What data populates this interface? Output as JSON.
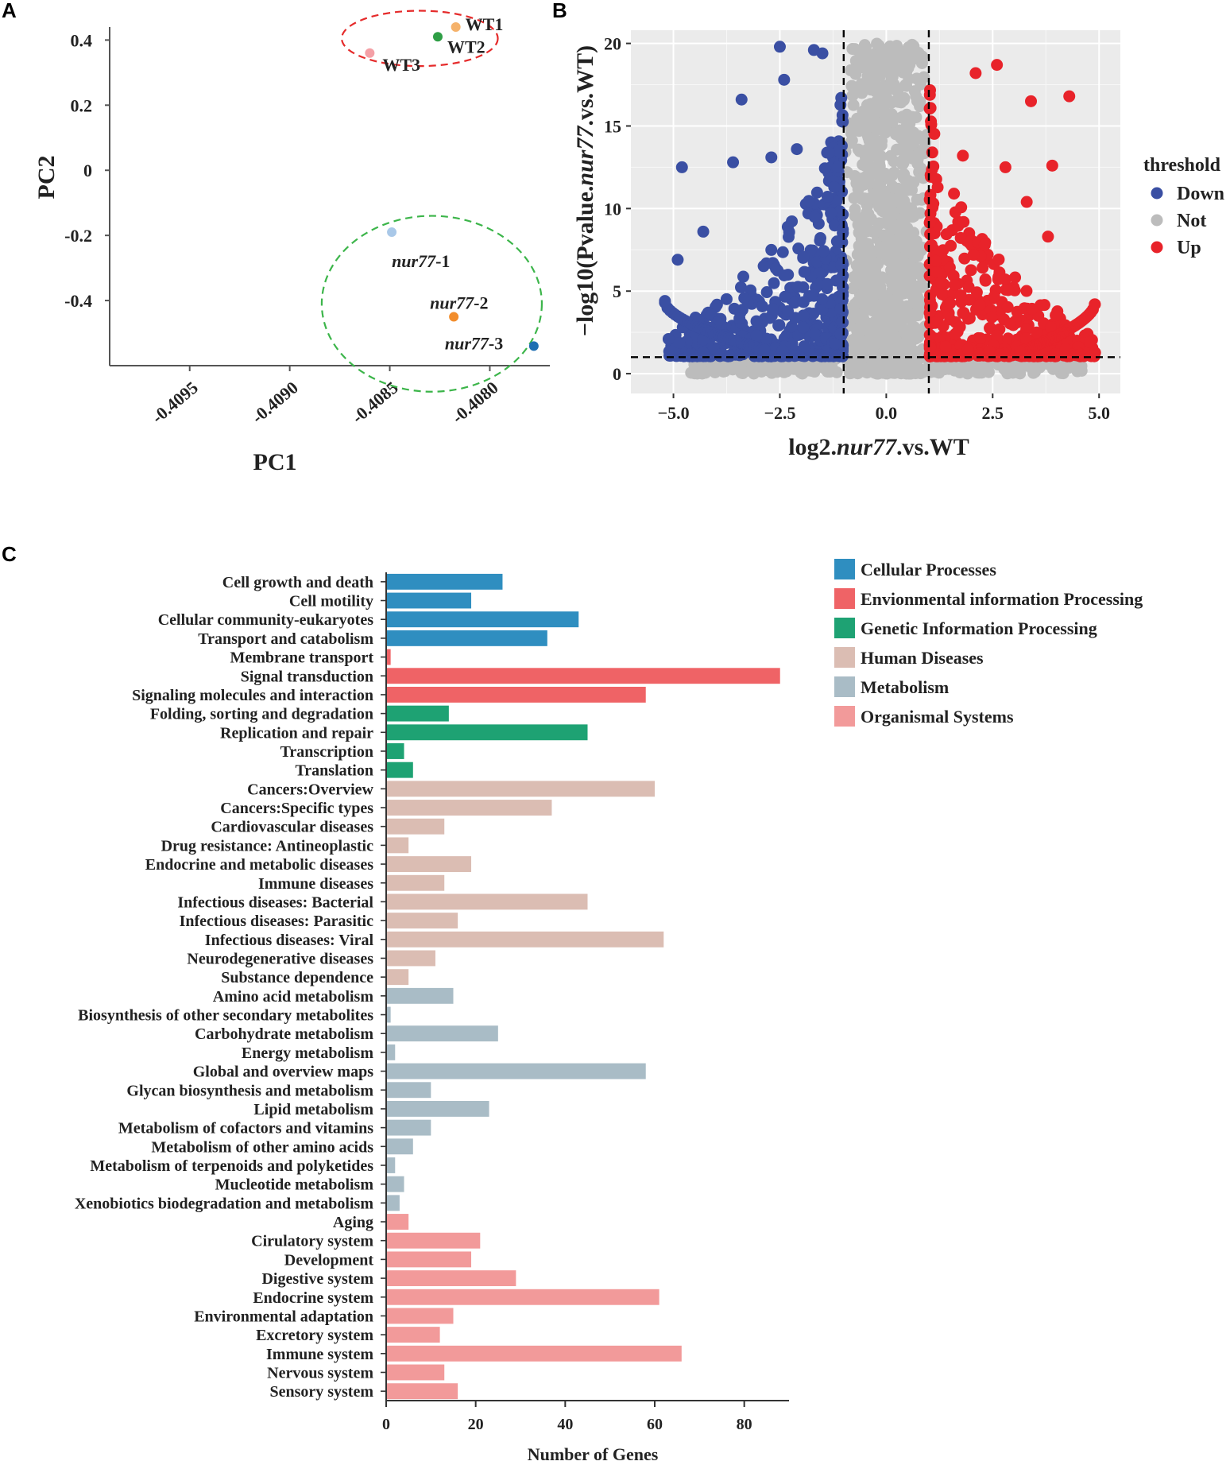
{
  "panels": {
    "a": "A",
    "b": "B",
    "c": "C"
  },
  "chart_data": [
    {
      "type": "scatter",
      "panel": "A",
      "title": "",
      "xlabel": "PC1",
      "ylabel": "PC2",
      "xlim": [
        -0.4099,
        -0.4077
      ],
      "ylim": [
        -0.6,
        0.44
      ],
      "x_ticks": [
        -0.4095,
        -0.409,
        -0.4085,
        -0.408
      ],
      "x_tick_labels": [
        "-0.4095",
        "-0.4090",
        "-0.4085",
        "-0.4080"
      ],
      "y_ticks": [
        0.4,
        0.2,
        0,
        -0.2,
        -0.4
      ],
      "y_tick_labels": [
        "0.4",
        "0.2",
        "0",
        "-0.2",
        "-0.4"
      ],
      "points": [
        {
          "name": "WT1",
          "label_prefix": "",
          "label_suffix": "WT1",
          "x": -0.40817,
          "y": 0.44,
          "color": "#f5b26b"
        },
        {
          "name": "WT2",
          "label_prefix": "",
          "label_suffix": "WT2",
          "x": -0.40826,
          "y": 0.41,
          "color": "#2e9e45"
        },
        {
          "name": "WT3",
          "label_prefix": "",
          "label_suffix": "WT3",
          "x": -0.4086,
          "y": 0.36,
          "color": "#f4a0a6"
        },
        {
          "name": "nur77-1",
          "label_prefix": "nur77",
          "label_suffix": "-1",
          "x": -0.40849,
          "y": -0.19,
          "color": "#a9c8e8"
        },
        {
          "name": "nur77-2",
          "label_prefix": "nur77",
          "label_suffix": "-2",
          "x": -0.40818,
          "y": -0.45,
          "color": "#f28d2c"
        },
        {
          "name": "nur77-3",
          "label_prefix": "nur77",
          "label_suffix": "-3",
          "x": -0.40778,
          "y": -0.54,
          "color": "#1f6fb2"
        }
      ],
      "groups": [
        {
          "name": "WT",
          "color": "#e52b2b",
          "center": [
            -0.40835,
            0.405
          ],
          "rx": 0.00039,
          "ry": 0.085
        },
        {
          "name": "nur77",
          "color": "#3cb54a",
          "center": [
            -0.40829,
            -0.41
          ],
          "rx": 0.00055,
          "ry": 0.27
        }
      ]
    },
    {
      "type": "scatter",
      "panel": "B",
      "title": "",
      "xlabel_prefix": "log2.",
      "xlabel_italic": "nur77",
      "xlabel_suffix": ".vs.WT",
      "ylabel_prefix": "−log10(Pvalue.",
      "ylabel_italic": "nur77",
      "ylabel_suffix": ".vs.WT)",
      "xlim": [
        -6.0,
        5.5
      ],
      "ylim": [
        -1.2,
        20.8
      ],
      "x_ticks": [
        -5.0,
        -2.5,
        0.0,
        2.5,
        5.0
      ],
      "x_tick_labels": [
        "−5.0",
        "−2.5",
        "0.0",
        "2.5",
        "5.0"
      ],
      "y_ticks": [
        0,
        5,
        10,
        15,
        20
      ],
      "y_tick_labels": [
        "0",
        "5",
        "10",
        "15",
        "20"
      ],
      "thresholds": {
        "x": [
          -1,
          1
        ],
        "y": 1.0
      },
      "legend_title": "threshold",
      "legend_position": "right",
      "series": [
        {
          "name": "Down",
          "color": "#3a4fa3",
          "x_range": [
            -5.2,
            -1.0
          ]
        },
        {
          "name": "Not",
          "color": "#bcbcbc",
          "x_range": [
            -1.0,
            1.0
          ]
        },
        {
          "name": "Up",
          "color": "#e8232a",
          "x_range": [
            1.0,
            5.0
          ]
        }
      ],
      "highlighted_points": {
        "down": [
          [
            -4.8,
            12.5
          ],
          [
            -3.4,
            16.6
          ],
          [
            -2.4,
            17.8
          ],
          [
            -2.5,
            19.8
          ],
          [
            -1.7,
            19.6
          ],
          [
            -1.5,
            19.4
          ],
          [
            -4.3,
            8.6
          ],
          [
            -4.9,
            6.9
          ],
          [
            -5.2,
            4.4
          ],
          [
            -3.6,
            12.8
          ],
          [
            -2.7,
            13.1
          ],
          [
            -2.1,
            13.6
          ]
        ],
        "up": [
          [
            2.6,
            18.7
          ],
          [
            2.1,
            18.2
          ],
          [
            3.4,
            16.5
          ],
          [
            4.3,
            16.8
          ],
          [
            2.8,
            12.5
          ],
          [
            3.9,
            12.6
          ],
          [
            3.3,
            10.4
          ],
          [
            3.8,
            8.3
          ],
          [
            4.9,
            4.2
          ],
          [
            1.8,
            13.2
          ]
        ]
      }
    },
    {
      "type": "bar",
      "panel": "C",
      "orientation": "horizontal",
      "title": "",
      "xlabel": "Number of Genes",
      "ylabel": "",
      "xlim": [
        0,
        90
      ],
      "x_ticks": [
        0,
        20,
        40,
        60,
        80
      ],
      "x_tick_labels": [
        "0",
        "20",
        "40",
        "60",
        "80"
      ],
      "legend_position": "top-right",
      "groups": [
        {
          "name": "Cellular Processes",
          "color": "#2f8ec0"
        },
        {
          "name": "Envionmental information Processing",
          "color": "#ef6366"
        },
        {
          "name": "Genetic Information Processing",
          "color": "#1ea273"
        },
        {
          "name": "Human Diseases",
          "color": "#dbbdb3"
        },
        {
          "name": "Metabolism",
          "color": "#a9bcc6"
        },
        {
          "name": "Organismal Systems",
          "color": "#f29a9a"
        }
      ],
      "categories": [
        "Cell growth and death",
        "Cell motility",
        "Cellular community-eukaryotes",
        "Transport and catabolism",
        "Membrane transport",
        "Signal transduction",
        "Signaling molecules and interaction",
        "Folding, sorting and degradation",
        "Replication and repair",
        "Transcription",
        "Translation",
        "Cancers:Overview",
        "Cancers:Specific types",
        "Cardiovascular diseases",
        "Drug resistance: Antineoplastic",
        "Endocrine and metabolic diseases",
        "Immune diseases",
        "Infectious diseases: Bacterial",
        "Infectious diseases: Parasitic",
        "Infectious diseases: Viral",
        "Neurodegenerative diseases",
        "Substance dependence",
        "Amino acid metabolism",
        "Biosynthesis of other secondary metabolites",
        "Carbohydrate metabolism",
        "Energy metabolism",
        "Global and overview maps",
        "Glycan biosynthesis and metabolism",
        "Lipid metabolism",
        "Metabolism of cofactors and vitamins",
        "Metabolism of other amino acids",
        "Metabolism of terpenoids and polyketides",
        "Mucleotide metabolism",
        "Xenobiotics biodegradation and metabolism",
        "Aging",
        "Cirulatory system",
        "Development",
        "Digestive system",
        "Endocrine system",
        "Environmental adaptation",
        "Excretory system",
        "Immune system",
        "Nervous system",
        "Sensory system"
      ],
      "values": [
        26,
        19,
        43,
        36,
        1,
        88,
        58,
        14,
        45,
        4,
        6,
        60,
        37,
        13,
        5,
        19,
        13,
        45,
        16,
        62,
        11,
        5,
        15,
        1,
        25,
        2,
        58,
        10,
        23,
        10,
        6,
        2,
        4,
        3,
        5,
        21,
        19,
        29,
        61,
        15,
        12,
        66,
        13,
        16
      ],
      "category_groups": [
        0,
        0,
        0,
        0,
        1,
        1,
        1,
        2,
        2,
        2,
        2,
        3,
        3,
        3,
        3,
        3,
        3,
        3,
        3,
        3,
        3,
        3,
        4,
        4,
        4,
        4,
        4,
        4,
        4,
        4,
        4,
        4,
        4,
        4,
        5,
        5,
        5,
        5,
        5,
        5,
        5,
        5,
        5,
        5
      ]
    }
  ]
}
